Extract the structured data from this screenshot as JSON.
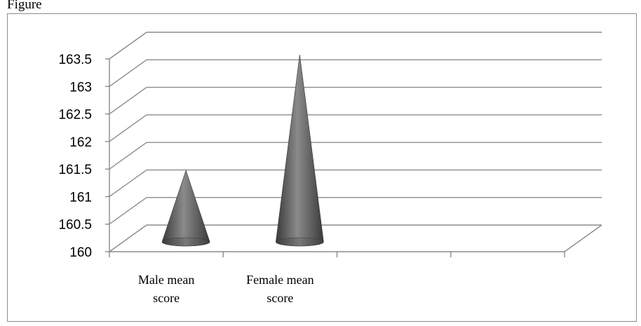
{
  "caption": "Figure",
  "chart_data": {
    "type": "bar",
    "style": "3d-cone",
    "categories": [
      "Male mean score",
      "Female mean score",
      "",
      ""
    ],
    "values": [
      161.4,
      163.5,
      null,
      null
    ],
    "ylim": [
      160,
      163.5
    ],
    "yticks": [
      160,
      160.5,
      161,
      161.5,
      162,
      162.5,
      163,
      163.5
    ],
    "title": "",
    "xlabel": "",
    "ylabel": "",
    "grid": true,
    "legend": "none",
    "colors": {
      "cone_dark": "#3a3a3a",
      "cone_light": "#8a8a8a",
      "grid": "#8c8c8c"
    }
  }
}
